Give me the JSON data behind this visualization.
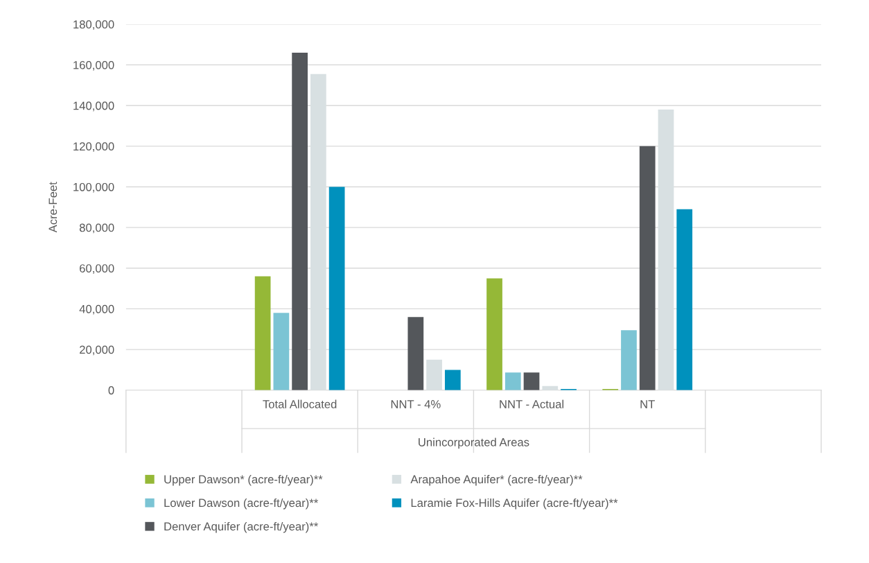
{
  "chart_data": {
    "type": "bar",
    "ylabel": "Acre-Feet",
    "xlabel": "Unincorporated Areas",
    "categories": [
      null,
      "Total Allocated",
      "NNT - 4%",
      "NNT - Actual",
      "NT",
      null
    ],
    "series": [
      {
        "name": "Upper Dawson* (acre-ft/year)**",
        "color": "#95b837",
        "values": [
          null,
          56000,
          0,
          55000,
          600,
          null
        ]
      },
      {
        "name": "Lower Dawson (acre-ft/year)**",
        "color": "#7bc4d4",
        "values": [
          null,
          38000,
          0,
          8700,
          29500,
          null
        ]
      },
      {
        "name": "Denver Aquifer (acre-ft/year)**",
        "color": "#54575b",
        "values": [
          null,
          166000,
          36000,
          8700,
          120000,
          null
        ]
      },
      {
        "name": "Arapahoe Aquifer* (acre-ft/year)**",
        "color": "#d8e0e2",
        "values": [
          null,
          155500,
          15000,
          2000,
          138000,
          null
        ]
      },
      {
        "name": "Laramie Fox-Hills Aquifer (acre-ft/year)**",
        "color": "#0091bd",
        "values": [
          null,
          100000,
          10000,
          600,
          89000,
          null
        ]
      }
    ],
    "ylim": [
      0,
      180000
    ],
    "yticks": [
      {
        "value": 0,
        "label": "0"
      },
      {
        "value": 20000,
        "label": "20,000"
      },
      {
        "value": 40000,
        "label": "40,000"
      },
      {
        "value": 60000,
        "label": "60,000"
      },
      {
        "value": 80000,
        "label": "80,000"
      },
      {
        "value": 100000,
        "label": "100,000"
      },
      {
        "value": 120000,
        "label": "120,000"
      },
      {
        "value": 140000,
        "label": "140,000"
      },
      {
        "value": 160000,
        "label": "160,000"
      },
      {
        "value": 180000,
        "label": "180,000"
      }
    ],
    "grid": "y",
    "legend": "bottom"
  }
}
